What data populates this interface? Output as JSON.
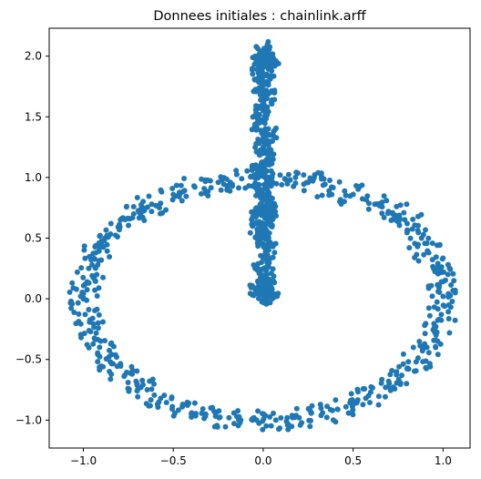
{
  "chart_data": {
    "type": "scatter",
    "title": "Donnees initiales : chainlink.arff",
    "xlabel": "",
    "ylabel": "",
    "xlim": [
      -1.19,
      1.15
    ],
    "ylim": [
      -1.23,
      2.23
    ],
    "x_ticks": [
      -1.0,
      -0.5,
      0.0,
      0.5,
      1.0
    ],
    "x_tick_labels": [
      "−1.0",
      "−0.5",
      "0.0",
      "0.5",
      "1.0"
    ],
    "y_ticks": [
      -1.0,
      -0.5,
      0.0,
      0.5,
      1.0,
      1.5,
      2.0
    ],
    "y_tick_labels": [
      "−1.0",
      "−0.5",
      "0.0",
      "0.5",
      "1.0",
      "1.5",
      "2.0"
    ],
    "grid": false,
    "marker_color": "#1f77b4",
    "series": [
      {
        "ring": "horizontal",
        "points": [
          [
            1.0,
            0.02
          ],
          [
            0.99,
            0.14
          ],
          [
            0.97,
            0.26
          ],
          [
            0.92,
            0.38
          ],
          [
            0.88,
            0.5
          ],
          [
            0.8,
            0.62
          ],
          [
            0.72,
            0.7
          ],
          [
            0.62,
            0.78
          ],
          [
            0.5,
            0.86
          ],
          [
            0.38,
            0.92
          ],
          [
            0.25,
            0.96
          ],
          [
            0.12,
            0.99
          ],
          [
            -0.12,
            0.99
          ],
          [
            -0.25,
            0.96
          ],
          [
            -0.38,
            0.92
          ],
          [
            -0.5,
            0.86
          ],
          [
            -0.62,
            0.78
          ],
          [
            -0.72,
            0.7
          ],
          [
            -0.8,
            0.61
          ],
          [
            -0.88,
            0.5
          ],
          [
            -0.93,
            0.38
          ],
          [
            -0.97,
            0.25
          ],
          [
            -0.99,
            0.12
          ],
          [
            -1.0,
            0.0
          ],
          [
            -0.99,
            -0.13
          ],
          [
            -0.96,
            -0.27
          ],
          [
            -0.91,
            -0.4
          ],
          [
            -0.85,
            -0.52
          ],
          [
            -0.77,
            -0.63
          ],
          [
            -0.68,
            -0.73
          ],
          [
            -0.57,
            -0.82
          ],
          [
            -0.45,
            -0.89
          ],
          [
            -0.32,
            -0.95
          ],
          [
            -0.19,
            -0.98
          ],
          [
            -0.06,
            -1.0
          ],
          [
            0.07,
            -1.0
          ],
          [
            0.2,
            -0.98
          ],
          [
            0.33,
            -0.94
          ],
          [
            0.46,
            -0.89
          ],
          [
            0.57,
            -0.82
          ],
          [
            0.68,
            -0.73
          ],
          [
            0.77,
            -0.63
          ],
          [
            0.85,
            -0.52
          ],
          [
            0.91,
            -0.4
          ],
          [
            0.96,
            -0.27
          ],
          [
            0.99,
            -0.13
          ]
        ]
      },
      {
        "ring": "vertical",
        "points": [
          [
            0.0,
            2.05
          ],
          [
            0.01,
            1.95
          ],
          [
            0.02,
            1.85
          ],
          [
            -0.01,
            1.75
          ],
          [
            0.02,
            1.65
          ],
          [
            0.0,
            1.55
          ],
          [
            -0.02,
            1.45
          ],
          [
            0.03,
            1.35
          ],
          [
            0.0,
            1.25
          ],
          [
            0.02,
            1.15
          ],
          [
            -0.03,
            1.05
          ],
          [
            0.01,
            1.0
          ],
          [
            0.0,
            0.9
          ],
          [
            0.02,
            0.8
          ],
          [
            -0.02,
            0.7
          ],
          [
            0.01,
            0.6
          ],
          [
            0.0,
            0.5
          ],
          [
            0.03,
            0.4
          ],
          [
            -0.01,
            0.3
          ],
          [
            0.02,
            0.2
          ],
          [
            0.0,
            0.1
          ],
          [
            0.01,
            0.02
          ],
          [
            -0.03,
            0.08
          ],
          [
            0.04,
            0.06
          ],
          [
            -0.02,
            1.92
          ],
          [
            0.04,
            1.98
          ],
          [
            -0.03,
            0.55
          ],
          [
            0.03,
            0.7
          ]
        ]
      }
    ]
  }
}
